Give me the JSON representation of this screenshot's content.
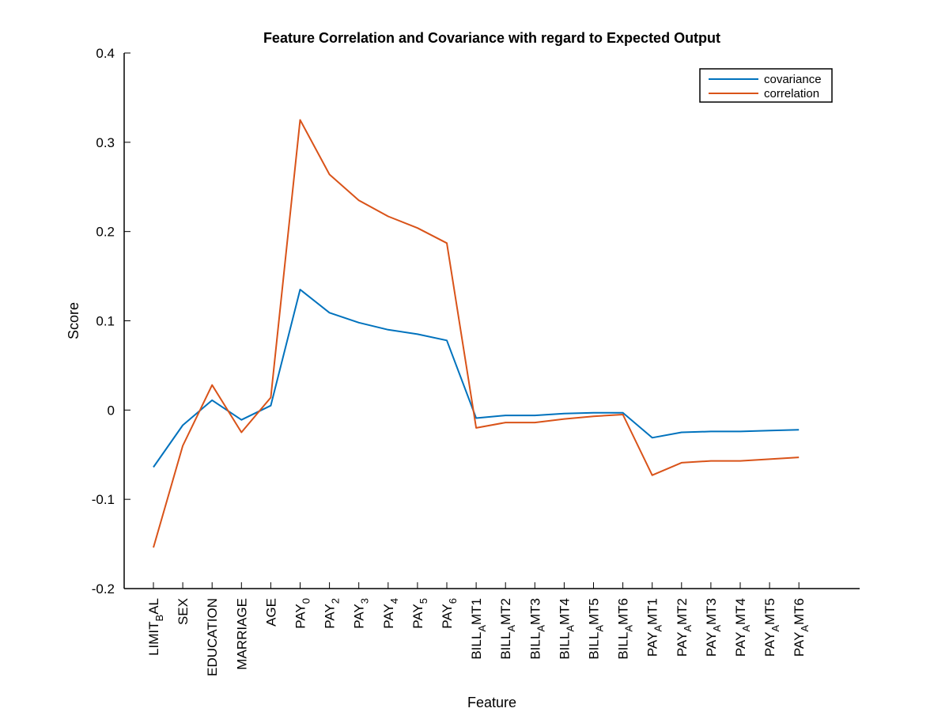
{
  "chart_data": {
    "type": "line",
    "title": "Feature Correlation and Covariance with regard to Expected Output",
    "xlabel": "Feature",
    "ylabel": "Score",
    "ylim": [
      -0.2,
      0.4
    ],
    "yticks": [
      -0.2,
      -0.1,
      0,
      0.1,
      0.2,
      0.3,
      0.4
    ],
    "ytick_labels": [
      "-0.2",
      "-0.1",
      "0",
      "0.1",
      "0.2",
      "0.3",
      "0.4"
    ],
    "categories": [
      {
        "base": "LIMIT",
        "sub": "B",
        "tail": "AL"
      },
      {
        "base": "SEX",
        "sub": "",
        "tail": ""
      },
      {
        "base": "EDUCATION",
        "sub": "",
        "tail": ""
      },
      {
        "base": "MARRIAGE",
        "sub": "",
        "tail": ""
      },
      {
        "base": "AGE",
        "sub": "",
        "tail": ""
      },
      {
        "base": "PAY",
        "sub": "0",
        "tail": ""
      },
      {
        "base": "PAY",
        "sub": "2",
        "tail": ""
      },
      {
        "base": "PAY",
        "sub": "3",
        "tail": ""
      },
      {
        "base": "PAY",
        "sub": "4",
        "tail": ""
      },
      {
        "base": "PAY",
        "sub": "5",
        "tail": ""
      },
      {
        "base": "PAY",
        "sub": "6",
        "tail": ""
      },
      {
        "base": "BILL",
        "sub": "A",
        "tail": "MT1"
      },
      {
        "base": "BILL",
        "sub": "A",
        "tail": "MT2"
      },
      {
        "base": "BILL",
        "sub": "A",
        "tail": "MT3"
      },
      {
        "base": "BILL",
        "sub": "A",
        "tail": "MT4"
      },
      {
        "base": "BILL",
        "sub": "A",
        "tail": "MT5"
      },
      {
        "base": "BILL",
        "sub": "A",
        "tail": "MT6"
      },
      {
        "base": "PAY",
        "sub": "A",
        "tail": "MT1"
      },
      {
        "base": "PAY",
        "sub": "A",
        "tail": "MT2"
      },
      {
        "base": "PAY",
        "sub": "A",
        "tail": "MT3"
      },
      {
        "base": "PAY",
        "sub": "A",
        "tail": "MT4"
      },
      {
        "base": "PAY",
        "sub": "A",
        "tail": "MT5"
      },
      {
        "base": "PAY",
        "sub": "A",
        "tail": "MT6"
      }
    ],
    "series": [
      {
        "name": "covariance",
        "color": "#0072BD",
        "values": [
          -0.064,
          -0.017,
          0.011,
          -0.011,
          0.005,
          0.135,
          0.109,
          0.098,
          0.09,
          0.085,
          0.078,
          -0.009,
          -0.006,
          -0.006,
          -0.004,
          -0.003,
          -0.003,
          -0.031,
          -0.025,
          -0.024,
          -0.024,
          -0.023,
          -0.022
        ]
      },
      {
        "name": "correlation",
        "color": "#D95319",
        "values": [
          -0.154,
          -0.04,
          0.028,
          -0.025,
          0.014,
          0.325,
          0.264,
          0.235,
          0.217,
          0.204,
          0.187,
          -0.02,
          -0.014,
          -0.014,
          -0.01,
          -0.007,
          -0.005,
          -0.073,
          -0.059,
          -0.057,
          -0.057,
          -0.055,
          -0.053
        ]
      }
    ],
    "legend_position": "top-right",
    "grid": false
  }
}
